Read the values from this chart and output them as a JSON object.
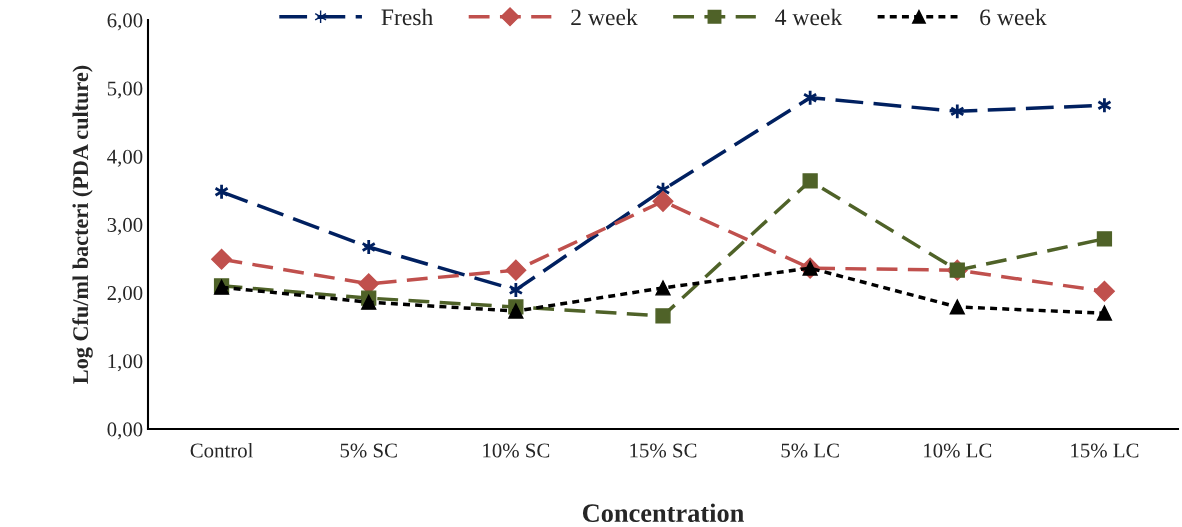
{
  "chart_data": {
    "type": "line",
    "xlabel": "Concentration",
    "ylabel": "Log Cfu/ml bacteri (PDA culture)",
    "categories": [
      "Control",
      "5% SC",
      "10% SC",
      "15% SC",
      "5% LC",
      "10% LC",
      "15% LC"
    ],
    "series": [
      {
        "name": "Fresh",
        "color": "#002060",
        "marker": "cross",
        "line_style": "dashed",
        "values": [
          3.48,
          2.67,
          2.04,
          3.51,
          4.86,
          4.66,
          4.75
        ]
      },
      {
        "name": "2 week",
        "color": "#c0504d",
        "marker": "diamond",
        "line_style": "dashed",
        "values": [
          2.49,
          2.13,
          2.33,
          3.34,
          2.36,
          2.33,
          2.02
        ]
      },
      {
        "name": "4 week",
        "color": "#4f6228",
        "marker": "square",
        "line_style": "dashed",
        "values": [
          2.1,
          1.92,
          1.79,
          1.66,
          3.64,
          2.33,
          2.79
        ]
      },
      {
        "name": "6 week",
        "color": "#000000",
        "marker": "triangle",
        "line_style": "dotted",
        "values": [
          2.08,
          1.86,
          1.73,
          2.07,
          2.36,
          1.79,
          1.7
        ]
      }
    ],
    "ylim": [
      0,
      6
    ],
    "yticks": [
      {
        "value": 0,
        "label": "0,00"
      },
      {
        "value": 1,
        "label": "1,00"
      },
      {
        "value": 2,
        "label": "2,00"
      },
      {
        "value": 3,
        "label": "3,00"
      },
      {
        "value": 4,
        "label": "4,00"
      },
      {
        "value": 5,
        "label": "5,00"
      },
      {
        "value": 6,
        "label": "6,00"
      }
    ],
    "grid": false,
    "legend": "top"
  }
}
